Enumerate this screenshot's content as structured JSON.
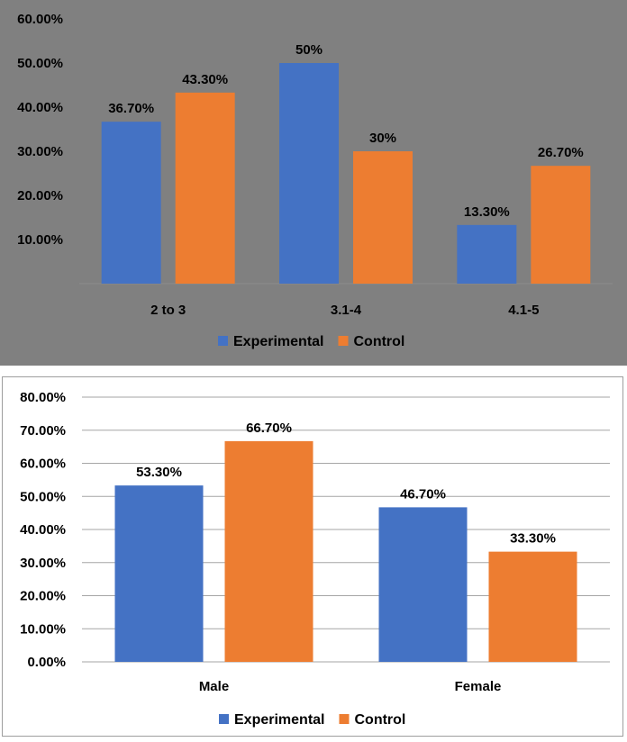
{
  "chart_data": [
    {
      "type": "bar",
      "categories": [
        "2 to 3",
        "3.1-4",
        "4.1-5"
      ],
      "series": [
        {
          "name": "Experimental",
          "values": [
            36.7,
            50,
            13.3
          ],
          "labels": [
            "36.70%",
            "50%",
            "13.30%"
          ],
          "color": "#4472C4"
        },
        {
          "name": "Control",
          "values": [
            43.3,
            30,
            26.7
          ],
          "labels": [
            "43.30%",
            "30%",
            "26.70%"
          ],
          "color": "#ED7D31"
        }
      ],
      "ylim": [
        0,
        60
      ],
      "yticks": [
        60,
        50,
        40,
        30,
        20,
        10
      ],
      "ytick_labels": [
        "60.00%",
        "50.00%",
        "40.00%",
        "30.00%",
        "20.00%",
        "10.00%"
      ],
      "grid": false,
      "legend": "bottom",
      "background": "#808080"
    },
    {
      "type": "bar",
      "categories": [
        "Male",
        "Female"
      ],
      "series": [
        {
          "name": "Experimental",
          "values": [
            53.3,
            46.7
          ],
          "labels": [
            "53.30%",
            "46.70%"
          ],
          "color": "#4472C4"
        },
        {
          "name": "Control",
          "values": [
            66.7,
            33.3
          ],
          "labels": [
            "66.70%",
            "33.30%"
          ],
          "color": "#ED7D31"
        }
      ],
      "ylim": [
        0,
        80
      ],
      "yticks": [
        80,
        70,
        60,
        50,
        40,
        30,
        20,
        10,
        0
      ],
      "ytick_labels": [
        "80.00%",
        "70.00%",
        "60.00%",
        "50.00%",
        "40.00%",
        "30.00%",
        "20.00%",
        "10.00%",
        "0.00%"
      ],
      "grid": true,
      "legend": "bottom",
      "background": "#ffffff"
    }
  ]
}
